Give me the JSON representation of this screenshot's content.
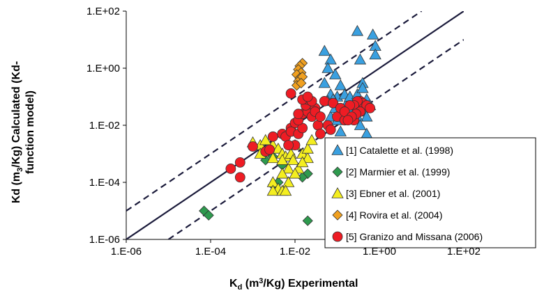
{
  "chart_data": {
    "type": "scatter",
    "xscale": "log",
    "yscale": "log",
    "xlim": [
      1e-06,
      100.0
    ],
    "ylim": [
      1e-06,
      100.0
    ],
    "xticks": [
      "1.E-06",
      "1.E-04",
      "1.E-02",
      "1.E+00",
      "1.E+02"
    ],
    "yticks": [
      "1.E+02",
      "1.E+00",
      "1.E-02",
      "1.E-04",
      "1.E-06"
    ],
    "xlabel": {
      "main": "K",
      "sub": "d",
      "sup": "3",
      "pre": " (m",
      "post": "/Kg) Experimental"
    },
    "ylabel": {
      "line1": {
        "pre": "Kd (m",
        "sub": "3",
        "post": "/Kg) Calculated (Kd-"
      },
      "line2": "function model)"
    },
    "grid": false,
    "legend_position": "bottom-right",
    "reference_lines": [
      {
        "name": "1:1",
        "style": "solid",
        "points": [
          [
            1e-06,
            1e-06
          ],
          [
            100.0,
            100.0
          ]
        ]
      },
      {
        "name": "upper",
        "style": "dashed",
        "points": [
          [
            1e-06,
            1e-05
          ],
          [
            10.0,
            100.0
          ]
        ]
      },
      {
        "name": "lower",
        "style": "dashed",
        "points": [
          [
            1e-05,
            1e-06
          ],
          [
            100.0,
            10.0
          ]
        ]
      }
    ],
    "series": [
      {
        "name": "[1] Catalette et al. (1998)",
        "marker": "triangle",
        "color": "#3aa0e0",
        "points": [
          [
            0.3,
            20
          ],
          [
            0.7,
            15
          ],
          [
            0.8,
            6
          ],
          [
            0.8,
            3
          ],
          [
            0.35,
            2
          ],
          [
            0.05,
            4
          ],
          [
            0.07,
            2
          ],
          [
            0.06,
            1
          ],
          [
            0.09,
            0.6
          ],
          [
            0.05,
            0.3
          ],
          [
            0.12,
            0.25
          ],
          [
            0.1,
            0.1
          ],
          [
            0.07,
            0.12
          ],
          [
            0.08,
            0.08
          ],
          [
            0.06,
            0.07
          ],
          [
            0.15,
            0.12
          ],
          [
            0.17,
            0.06
          ],
          [
            0.2,
            0.1
          ],
          [
            0.25,
            0.04
          ],
          [
            0.2,
            0.03
          ],
          [
            0.3,
            0.12
          ],
          [
            0.4,
            0.3
          ],
          [
            0.5,
            0.08
          ],
          [
            0.6,
            0.05
          ],
          [
            0.4,
            0.03
          ],
          [
            0.5,
            0.02
          ],
          [
            0.07,
            0.02
          ],
          [
            0.1,
            0.015
          ],
          [
            0.12,
            0.006
          ],
          [
            0.5,
            0.005
          ],
          [
            0.3,
            0.02
          ],
          [
            0.25,
            0.06
          ],
          [
            0.35,
            0.01
          ],
          [
            0.15,
            0.02
          ],
          [
            0.4,
            0.2
          ],
          [
            0.09,
            0.04
          ]
        ]
      },
      {
        "name": "[2] Marmier et al. (1999)",
        "marker": "diamond",
        "color": "#2e9a4e",
        "points": [
          [
            7e-05,
            1e-05
          ],
          [
            9e-05,
            7e-06
          ],
          [
            0.002,
            0.0006
          ],
          [
            0.003,
            0.0008
          ],
          [
            0.005,
            0.0005
          ],
          [
            0.005,
            0.0004
          ],
          [
            0.004,
            0.0001
          ],
          [
            0.003,
            8e-05
          ],
          [
            0.02,
            0.0002
          ],
          [
            0.015,
            0.00015
          ],
          [
            0.02,
            4.5e-06
          ]
        ]
      },
      {
        "name": "[3] Ebner et al. (2001)",
        "marker": "triangle",
        "color": "#f4ee20",
        "points": [
          [
            0.001,
            0.0025
          ],
          [
            0.0015,
            0.002
          ],
          [
            0.002,
            0.003
          ],
          [
            0.003,
            0.002
          ],
          [
            0.0015,
            0.001
          ],
          [
            0.004,
            0.0015
          ],
          [
            0.005,
            0.001
          ],
          [
            0.006,
            0.0008
          ],
          [
            0.008,
            0.001
          ],
          [
            0.01,
            0.002
          ],
          [
            0.015,
            0.001
          ],
          [
            0.02,
            0.0007
          ],
          [
            0.003,
            0.0007
          ],
          [
            0.005,
            0.0006
          ],
          [
            0.007,
            0.0003
          ],
          [
            0.009,
            0.0006
          ],
          [
            0.012,
            0.0003
          ],
          [
            0.01,
            0.0002
          ],
          [
            0.015,
            0.0005
          ],
          [
            0.02,
            0.0015
          ],
          [
            0.025,
            0.003
          ],
          [
            0.005,
            0.0002
          ],
          [
            0.003,
            0.0001
          ],
          [
            0.004,
            6e-05
          ],
          [
            0.003,
            5e-05
          ],
          [
            0.005,
            5e-05
          ],
          [
            0.007,
            0.0001
          ],
          [
            0.006,
            5e-05
          ]
        ]
      },
      {
        "name": "[4] Rovira et al. (2004)",
        "marker": "diamond",
        "color": "#f0a020",
        "points": [
          [
            0.015,
            1.5
          ],
          [
            0.013,
            1.2
          ],
          [
            0.012,
            0.9
          ],
          [
            0.014,
            0.7
          ],
          [
            0.011,
            0.6
          ],
          [
            0.013,
            0.45
          ],
          [
            0.012,
            0.35
          ],
          [
            0.015,
            0.5
          ],
          [
            0.011,
            0.25
          ],
          [
            0.014,
            0.3
          ]
        ]
      },
      {
        "name": "[5] Granizo and Missana (2006)",
        "marker": "circle",
        "color": "#ee1c24",
        "points": [
          [
            0.0003,
            0.0003
          ],
          [
            0.0005,
            0.0005
          ],
          [
            0.0005,
            0.00015
          ],
          [
            0.001,
            0.0018
          ],
          [
            0.002,
            0.0012
          ],
          [
            0.0025,
            0.0014
          ],
          [
            0.003,
            0.004
          ],
          [
            0.005,
            0.005
          ],
          [
            0.006,
            0.004
          ],
          [
            0.008,
            0.008
          ],
          [
            0.01,
            0.012
          ],
          [
            0.008,
            0.006
          ],
          [
            0.01,
            0.002
          ],
          [
            0.007,
            0.002
          ],
          [
            0.012,
            0.005
          ],
          [
            0.015,
            0.008
          ],
          [
            0.012,
            0.015
          ],
          [
            0.015,
            0.025
          ],
          [
            0.02,
            0.03
          ],
          [
            0.018,
            0.05
          ],
          [
            0.02,
            0.08
          ],
          [
            0.025,
            0.02
          ],
          [
            0.03,
            0.04
          ],
          [
            0.025,
            0.07
          ],
          [
            0.035,
            0.01
          ],
          [
            0.04,
            0.005
          ],
          [
            0.06,
            0.01
          ],
          [
            0.07,
            0.007
          ],
          [
            0.05,
            0.07
          ],
          [
            0.08,
            0.06
          ],
          [
            0.1,
            0.02
          ],
          [
            0.15,
            0.015
          ],
          [
            0.2,
            0.02
          ],
          [
            0.25,
            0.015
          ],
          [
            0.3,
            0.04
          ],
          [
            0.35,
            0.07
          ],
          [
            0.4,
            0.06
          ],
          [
            0.5,
            0.05
          ],
          [
            0.3,
            0.07
          ],
          [
            0.25,
            0.05
          ],
          [
            0.2,
            0.05
          ],
          [
            0.12,
            0.04
          ],
          [
            0.15,
            0.03
          ],
          [
            0.6,
            0.04
          ],
          [
            0.35,
            0.03
          ],
          [
            0.28,
            0.025
          ],
          [
            0.22,
            0.02
          ],
          [
            0.18,
            0.015
          ],
          [
            0.008,
            0.13
          ],
          [
            0.015,
            0.08
          ],
          [
            0.02,
            0.1
          ],
          [
            0.03,
            0.03
          ],
          [
            0.04,
            0.02
          ],
          [
            0.012,
            0.025
          ]
        ]
      }
    ]
  }
}
